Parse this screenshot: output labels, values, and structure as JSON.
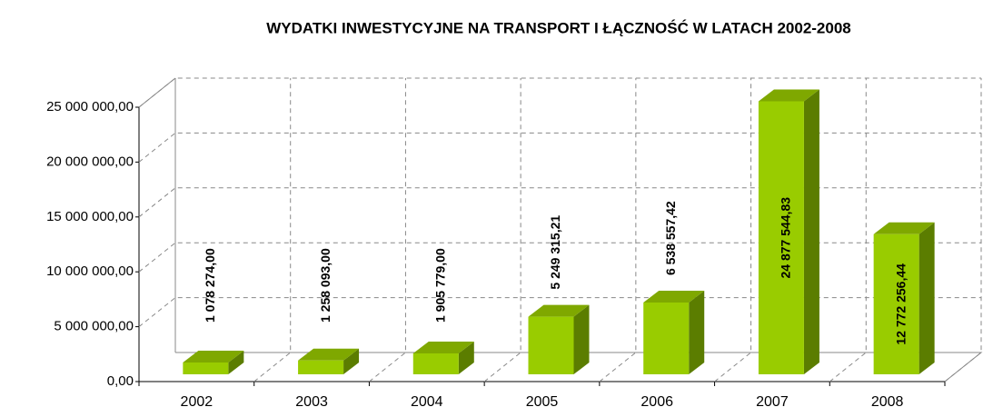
{
  "chart_data": {
    "type": "bar3d",
    "title": "WYDATKI INWESTYCYJNE NA TRANSPORT I ŁĄCZNOŚĆ W LATACH 2002-2008",
    "categories": [
      "2002",
      "2003",
      "2004",
      "2005",
      "2006",
      "2007",
      "2008"
    ],
    "values": [
      1078274.0,
      1258093.0,
      1905779.0,
      5249315.21,
      6538557.42,
      24877544.83,
      12772256.44
    ],
    "value_labels": [
      "1 078 274,00",
      "1 258 093,00",
      "1 905 779,00",
      "5 249 315,21",
      "6 538 557,42",
      "24 877 544,83",
      "12 772 256,44"
    ],
    "color": "#99cc00",
    "ylim": [
      0,
      25000000
    ],
    "yticks": [
      {
        "value": 0,
        "label": "0,00"
      },
      {
        "value": 5000000,
        "label": "5 000 000,00"
      },
      {
        "value": 10000000,
        "label": "10 000 000,00"
      },
      {
        "value": 15000000,
        "label": "15 000 000,00"
      },
      {
        "value": 20000000,
        "label": "20 000 000,00"
      },
      {
        "value": 25000000,
        "label": "25 000 000,00"
      }
    ],
    "grid": true
  }
}
